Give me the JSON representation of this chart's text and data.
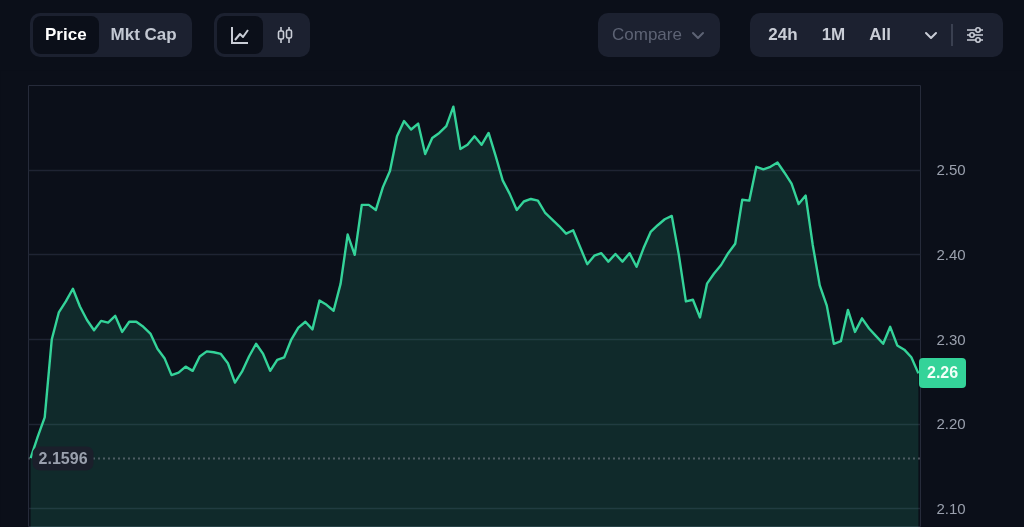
{
  "chart_data": {
    "type": "area",
    "categories": [
      null,
      null,
      null,
      null,
      null,
      null,
      null,
      null,
      null,
      null,
      null,
      null,
      null,
      null,
      null,
      null,
      null,
      null,
      null,
      null,
      null,
      null,
      null,
      null,
      null,
      null,
      null,
      null,
      null,
      null,
      null,
      null,
      null,
      null,
      null,
      null,
      null,
      null,
      null,
      null,
      null,
      null,
      null,
      null,
      null,
      null,
      null,
      null,
      null,
      null,
      null,
      null,
      null,
      null,
      null,
      null,
      null,
      null,
      null,
      null,
      null,
      null,
      null,
      null,
      null,
      null,
      null,
      null,
      null,
      null,
      null,
      null,
      null,
      null,
      null,
      null,
      null,
      null,
      null,
      null,
      null,
      null,
      null,
      null,
      null,
      null,
      null,
      null,
      null,
      null,
      null,
      null,
      null,
      null,
      null,
      null,
      null,
      null,
      null,
      null,
      null,
      null,
      null,
      null,
      null,
      null,
      null,
      null,
      null,
      null,
      null,
      null,
      null,
      null,
      null,
      null,
      null,
      null,
      null,
      null,
      null,
      null,
      null,
      null,
      null,
      null,
      null
    ],
    "values": [
      2.16,
      2.185,
      2.208,
      2.3,
      2.332,
      2.345,
      2.36,
      2.339,
      2.323,
      2.311,
      2.322,
      2.32,
      2.328,
      2.309,
      2.321,
      2.321,
      2.315,
      2.307,
      2.289,
      2.278,
      2.258,
      2.261,
      2.268,
      2.263,
      2.28,
      2.286,
      2.285,
      2.283,
      2.272,
      2.249,
      2.262,
      2.28,
      2.295,
      2.283,
      2.263,
      2.276,
      2.279,
      2.3,
      2.314,
      2.321,
      2.312,
      2.346,
      2.341,
      2.334,
      2.366,
      2.424,
      2.4,
      2.459,
      2.459,
      2.453,
      2.48,
      2.499,
      2.54,
      2.558,
      2.548,
      2.555,
      2.519,
      2.538,
      2.544,
      2.552,
      2.575,
      2.525,
      2.53,
      2.54,
      2.53,
      2.544,
      2.517,
      2.488,
      2.472,
      2.453,
      2.463,
      2.466,
      2.464,
      2.45,
      2.442,
      2.434,
      2.425,
      2.429,
      2.409,
      2.389,
      2.399,
      2.402,
      2.392,
      2.401,
      2.392,
      2.402,
      2.386,
      2.408,
      2.427,
      2.435,
      2.442,
      2.446,
      2.4,
      2.345,
      2.347,
      2.326,
      2.366,
      2.378,
      2.388,
      2.402,
      2.413,
      2.465,
      2.464,
      2.504,
      2.501,
      2.504,
      2.509,
      2.497,
      2.484,
      2.46,
      2.47,
      2.412,
      2.364,
      2.34,
      2.295,
      2.298,
      2.335,
      2.309,
      2.325,
      2.313,
      2.304,
      2.295,
      2.315,
      2.293,
      2.288,
      2.279,
      2.26
    ],
    "color": "#34d399",
    "ylim": [
      2.078,
      2.6
    ],
    "yticks": [
      {
        "value": 2.1,
        "label": "2.10"
      },
      {
        "value": 2.2,
        "label": "2.20"
      },
      {
        "value": 2.3,
        "label": "2.30"
      },
      {
        "value": 2.4,
        "label": "2.40"
      },
      {
        "value": 2.5,
        "label": "2.50"
      }
    ],
    "grid": "y",
    "ref_lines": [
      {
        "axis": "y",
        "value": 2.1596,
        "label": "2.1596",
        "line_style": "dotted",
        "color": "#8b909c"
      }
    ],
    "annotations": [
      "Price",
      "Mkt Cap",
      "Compare",
      "24h",
      "1M",
      "All",
      "2.26"
    ]
  }
}
